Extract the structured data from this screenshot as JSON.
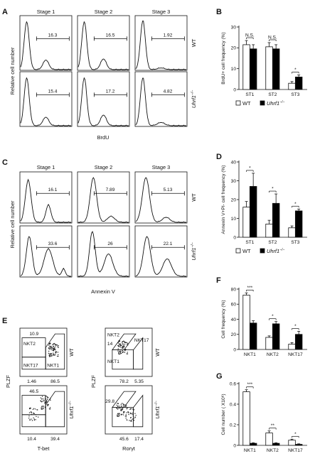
{
  "panels": {
    "A": {
      "letter": "A",
      "stages": [
        "Stage 1",
        "Stage 2",
        "Stage 3"
      ],
      "rows": [
        "WT",
        "Uhrf1−/−"
      ],
      "ylabel": "Relative cell number",
      "xlabel": "BrdU",
      "gate_values": [
        [
          "16.3",
          "16.5",
          "1.92"
        ],
        [
          "15.4",
          "17.2",
          "4.82"
        ]
      ]
    },
    "C": {
      "letter": "C",
      "stages": [
        "Stage 1",
        "Stage 2",
        "Stage 3"
      ],
      "rows": [
        "WT",
        "Uhrf1−/−"
      ],
      "ylabel": "Relative cell number",
      "xlabel": "Annexin V",
      "gate_values": [
        [
          "16.1",
          "7.89",
          "5.13"
        ],
        [
          "33.6",
          "26",
          "22.1"
        ]
      ]
    },
    "E": {
      "letter": "E",
      "left": {
        "xlabel": "T-bet",
        "ylabel": "PLZF",
        "wt": {
          "nkt2": "10.9",
          "nkt17": "1.46",
          "nkt1": "86.5"
        },
        "ko": {
          "nkt2": "46.5",
          "nkt17": "10.4",
          "nkt1": "39.4"
        },
        "gate_names": {
          "nkt2": "NKT2",
          "nkt17": "NKT17",
          "nkt1": "NKT1"
        }
      },
      "right": {
        "xlabel": "Rorγt",
        "ylabel": "PLZF",
        "wt": {
          "nkt2": "14",
          "nkt1": "78.2",
          "nkt17": "5.35"
        },
        "ko": {
          "nkt2": "29.8",
          "nkt1": "45.6",
          "nkt17": "17.4"
        },
        "gate_names": {
          "nkt2": "NKT2",
          "nkt1": "NKT1",
          "nkt17": "NKT17"
        }
      },
      "rows": [
        "WT",
        "Uhrf1−/−"
      ]
    },
    "legend": {
      "wt": "WT",
      "ko": "Uhrf1−/−"
    }
  },
  "chart_data": [
    {
      "panel": "B",
      "type": "bar",
      "categories": [
        "ST1",
        "ST2",
        "ST3"
      ],
      "ylabel": "BrdU+ cell frequency (%)",
      "ylim": [
        0,
        30
      ],
      "yticks": [
        0,
        10,
        20,
        30
      ],
      "series": [
        {
          "name": "WT",
          "values": [
            21.5,
            20.5,
            3
          ],
          "errors": [
            2,
            2,
            0.8
          ],
          "color": "#ffffff"
        },
        {
          "name": "Uhrf1−/−",
          "values": [
            19.5,
            19.5,
            6
          ],
          "errors": [
            2,
            2,
            1
          ],
          "color": "#000000"
        }
      ],
      "significance": [
        "N.S.",
        "N.S.",
        "*"
      ]
    },
    {
      "panel": "D",
      "type": "bar",
      "categories": [
        "ST1",
        "ST2",
        "ST3"
      ],
      "ylabel": "Annexin V+PI- cell frequency (%)",
      "ylim": [
        0,
        40
      ],
      "yticks": [
        0,
        10,
        20,
        30,
        40
      ],
      "series": [
        {
          "name": "WT",
          "values": [
            16,
            7,
            5
          ],
          "errors": [
            3,
            2,
            1
          ],
          "color": "#ffffff"
        },
        {
          "name": "Uhrf1−/−",
          "values": [
            27,
            18,
            14
          ],
          "errors": [
            7,
            5,
            1
          ],
          "color": "#000000"
        }
      ],
      "significance": [
        "*",
        "*",
        "*"
      ]
    },
    {
      "panel": "F",
      "type": "bar",
      "categories": [
        "NKT1",
        "NKT2",
        "NKT17"
      ],
      "ylabel": "Cell frequency (%)",
      "ylim": [
        0,
        80
      ],
      "yticks": [
        0,
        20,
        40,
        60,
        80
      ],
      "series": [
        {
          "name": "WT",
          "values": [
            72,
            16,
            7
          ],
          "errors": [
            3,
            2,
            2
          ],
          "color": "#ffffff"
        },
        {
          "name": "Uhrf1−/−",
          "values": [
            35,
            34,
            20
          ],
          "errors": [
            3,
            3,
            4
          ],
          "color": "#000000"
        }
      ],
      "significance": [
        "***",
        "*",
        "*"
      ]
    },
    {
      "panel": "G",
      "type": "bar",
      "categories": [
        "NKT1",
        "NKT2",
        "NKT17"
      ],
      "ylabel": "Cell number ( X10⁶)",
      "ylim": [
        0,
        0.6
      ],
      "yticks": [
        0.0,
        0.2,
        0.4,
        0.6
      ],
      "series": [
        {
          "name": "WT",
          "values": [
            0.52,
            0.12,
            0.05
          ],
          "errors": [
            0.02,
            0.02,
            0.01
          ],
          "color": "#ffffff"
        },
        {
          "name": "Uhrf1−/−",
          "values": [
            0.02,
            0.02,
            0.01
          ],
          "errors": [
            0.005,
            0.005,
            0.005
          ],
          "color": "#000000"
        }
      ],
      "significance": [
        "***",
        "**",
        "*"
      ]
    }
  ]
}
